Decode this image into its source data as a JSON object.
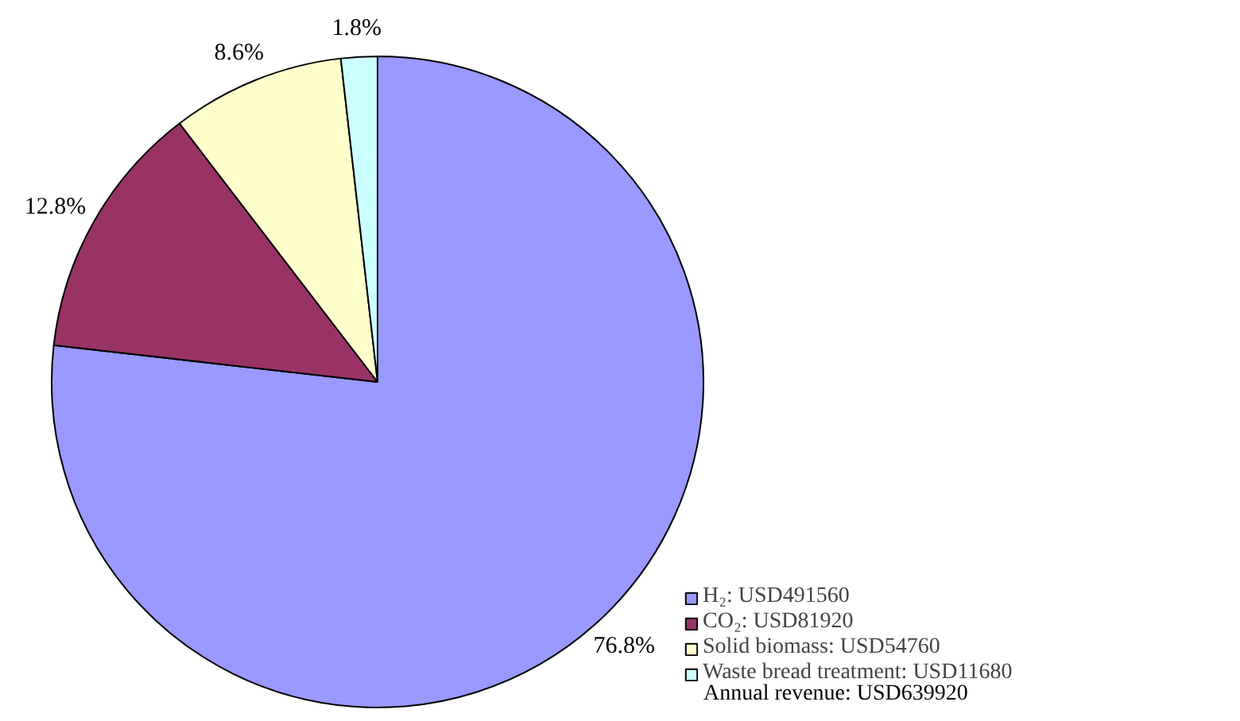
{
  "chart_data": {
    "type": "pie",
    "categories": [
      "H₂: USD491560",
      "CO₂: USD81920",
      "Solid biomass: USD54760",
      "Waste bread treatment: USD11680"
    ],
    "values": [
      76.8,
      12.8,
      8.6,
      1.8
    ],
    "colors": [
      "#9999ff",
      "#993366",
      "#ffffcc",
      "#ccffff"
    ],
    "value_labels": [
      "76.8%",
      "12.8%",
      "8.6%",
      "1.8%"
    ],
    "legend": "bottom right",
    "annotations": [
      "Annual revenue: USD639920"
    ]
  }
}
